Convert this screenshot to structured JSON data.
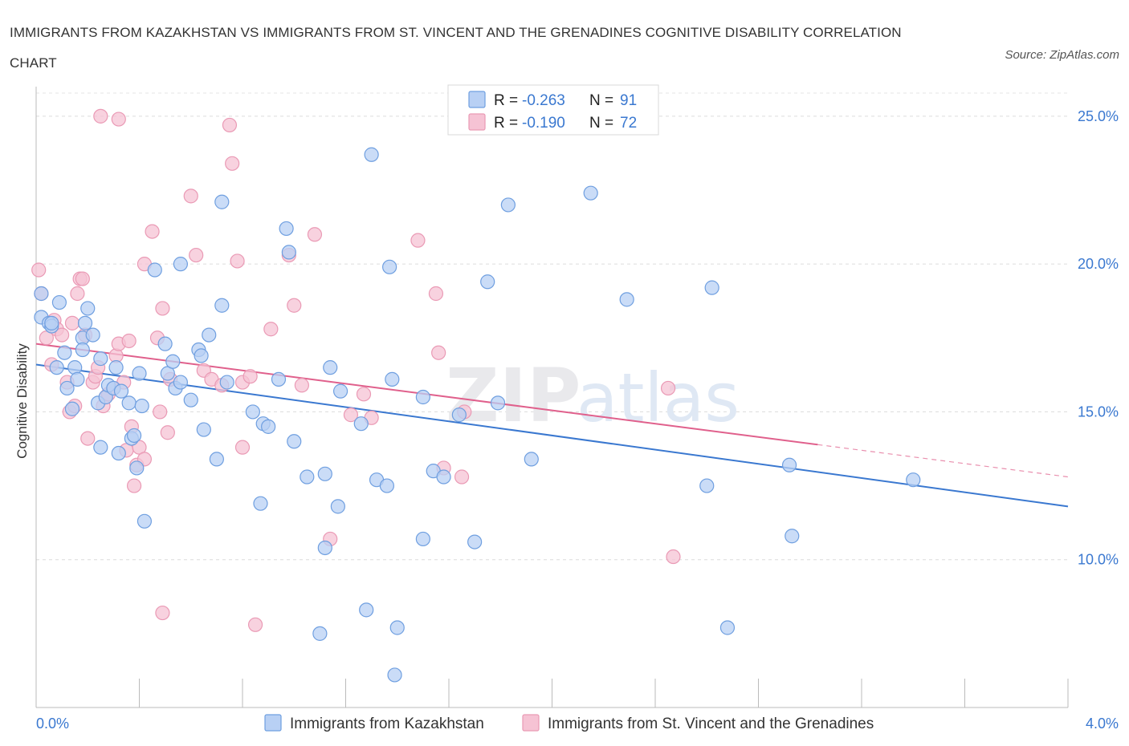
{
  "title": "IMMIGRANTS FROM KAZAKHSTAN VS IMMIGRANTS FROM ST. VINCENT AND THE GRENADINES COGNITIVE DISABILITY CORRELATION CHART",
  "source": "Source: ZipAtlas.com",
  "watermark": {
    "zip": "ZIP",
    "atlas": "atlas"
  },
  "chart_data": {
    "type": "scatter",
    "ylabel": "Cognitive Disability",
    "xlim": [
      0.0,
      4.0
    ],
    "ylim": [
      5.0,
      26.0
    ],
    "x_tick_labels": [
      {
        "value": 0.0,
        "label": "0.0%"
      },
      {
        "value": 4.0,
        "label": "4.0%"
      }
    ],
    "y_tick_labels": [
      {
        "value": 10.0,
        "label": "10.0%"
      },
      {
        "value": 15.0,
        "label": "15.0%"
      },
      {
        "value": 20.0,
        "label": "20.0%"
      },
      {
        "value": 25.0,
        "label": "25.0%"
      }
    ],
    "grid": true,
    "legend_placement": "top-center",
    "stats": [
      {
        "r_label": "R = ",
        "r_value": "-0.263",
        "n_label": "N = ",
        "n_value": "91"
      },
      {
        "r_label": "R = ",
        "r_value": "-0.190",
        "n_label": "N = ",
        "n_value": "72"
      }
    ],
    "series": [
      {
        "name": "Immigrants from Kazakhstan",
        "color": "#6f9fe0",
        "fill": "#b8d0f4",
        "line_color": "#3a78d0",
        "trend": {
          "x0": 0.0,
          "y0": 16.6,
          "x1": 4.0,
          "y1": 11.8,
          "solid_until": 4.0
        },
        "points": [
          [
            0.02,
            19.0
          ],
          [
            0.02,
            18.2
          ],
          [
            0.05,
            18.0
          ],
          [
            0.06,
            17.9
          ],
          [
            0.09,
            18.7
          ],
          [
            0.11,
            17.0
          ],
          [
            0.08,
            16.5
          ],
          [
            0.15,
            16.5
          ],
          [
            0.12,
            15.8
          ],
          [
            0.2,
            18.5
          ],
          [
            0.18,
            17.5
          ],
          [
            0.22,
            17.6
          ],
          [
            0.19,
            18.0
          ],
          [
            0.18,
            17.1
          ],
          [
            0.25,
            16.8
          ],
          [
            0.16,
            16.1
          ],
          [
            0.14,
            15.1
          ],
          [
            0.24,
            15.3
          ],
          [
            0.27,
            15.5
          ],
          [
            0.28,
            15.9
          ],
          [
            0.3,
            15.8
          ],
          [
            0.31,
            16.5
          ],
          [
            0.25,
            13.8
          ],
          [
            0.32,
            13.6
          ],
          [
            0.36,
            15.3
          ],
          [
            0.37,
            14.1
          ],
          [
            0.38,
            14.2
          ],
          [
            0.39,
            13.1
          ],
          [
            0.4,
            16.3
          ],
          [
            0.41,
            15.2
          ],
          [
            0.46,
            19.8
          ],
          [
            0.5,
            17.3
          ],
          [
            0.51,
            16.3
          ],
          [
            0.53,
            16.7
          ],
          [
            0.54,
            15.8
          ],
          [
            0.56,
            16.0
          ],
          [
            0.6,
            15.4
          ],
          [
            0.56,
            20.0
          ],
          [
            0.63,
            17.1
          ],
          [
            0.64,
            16.9
          ],
          [
            0.65,
            14.4
          ],
          [
            0.67,
            17.6
          ],
          [
            0.7,
            13.4
          ],
          [
            0.72,
            18.6
          ],
          [
            0.84,
            15.0
          ],
          [
            0.88,
            14.6
          ],
          [
            0.9,
            14.5
          ],
          [
            0.94,
            16.1
          ],
          [
            0.97,
            21.2
          ],
          [
            0.98,
            20.4
          ],
          [
            0.87,
            11.9
          ],
          [
            1.0,
            14.0
          ],
          [
            1.05,
            12.8
          ],
          [
            1.12,
            12.9
          ],
          [
            1.14,
            16.5
          ],
          [
            1.18,
            15.7
          ],
          [
            1.17,
            11.8
          ],
          [
            1.12,
            10.4
          ],
          [
            1.1,
            7.5
          ],
          [
            1.26,
            14.6
          ],
          [
            1.28,
            8.3
          ],
          [
            1.3,
            23.7
          ],
          [
            1.32,
            12.7
          ],
          [
            1.36,
            12.5
          ],
          [
            1.37,
            19.9
          ],
          [
            1.38,
            16.1
          ],
          [
            1.4,
            7.7
          ],
          [
            1.39,
            6.1
          ],
          [
            1.5,
            15.5
          ],
          [
            1.5,
            10.7
          ],
          [
            1.54,
            13.0
          ],
          [
            1.58,
            12.8
          ],
          [
            1.64,
            14.9
          ],
          [
            1.7,
            10.6
          ],
          [
            1.75,
            19.4
          ],
          [
            1.79,
            15.3
          ],
          [
            1.83,
            22.0
          ],
          [
            1.92,
            13.4
          ],
          [
            0.72,
            22.1
          ],
          [
            2.15,
            22.4
          ],
          [
            2.29,
            18.8
          ],
          [
            2.62,
            19.2
          ],
          [
            2.6,
            12.5
          ],
          [
            2.68,
            7.7
          ],
          [
            2.92,
            13.2
          ],
          [
            2.93,
            10.8
          ],
          [
            3.4,
            12.7
          ],
          [
            0.06,
            18.0
          ],
          [
            0.42,
            11.3
          ],
          [
            0.74,
            16.0
          ],
          [
            0.33,
            15.7
          ]
        ]
      },
      {
        "name": "Immigrants from St. Vincent and the Grenadines",
        "color": "#ea9ab5",
        "fill": "#f6c3d4",
        "line_color": "#e0608c",
        "trend": {
          "x0": 0.0,
          "y0": 17.3,
          "x1": 4.0,
          "y1": 12.8,
          "solid_until": 3.03
        },
        "points": [
          [
            0.01,
            19.8
          ],
          [
            0.02,
            19.0
          ],
          [
            0.04,
            17.5
          ],
          [
            0.06,
            16.6
          ],
          [
            0.07,
            18.1
          ],
          [
            0.08,
            17.8
          ],
          [
            0.1,
            17.6
          ],
          [
            0.12,
            16.0
          ],
          [
            0.13,
            15.0
          ],
          [
            0.14,
            18.0
          ],
          [
            0.16,
            19.0
          ],
          [
            0.17,
            19.5
          ],
          [
            0.19,
            17.6
          ],
          [
            0.18,
            19.5
          ],
          [
            0.15,
            15.2
          ],
          [
            0.2,
            14.1
          ],
          [
            0.22,
            16.0
          ],
          [
            0.23,
            16.2
          ],
          [
            0.24,
            16.5
          ],
          [
            0.26,
            15.2
          ],
          [
            0.27,
            15.5
          ],
          [
            0.28,
            15.6
          ],
          [
            0.3,
            15.8
          ],
          [
            0.31,
            16.9
          ],
          [
            0.32,
            17.3
          ],
          [
            0.34,
            16.0
          ],
          [
            0.35,
            13.7
          ],
          [
            0.36,
            17.4
          ],
          [
            0.37,
            14.5
          ],
          [
            0.38,
            12.5
          ],
          [
            0.39,
            13.2
          ],
          [
            0.4,
            13.8
          ],
          [
            0.42,
            13.4
          ],
          [
            0.42,
            20.0
          ],
          [
            0.45,
            21.1
          ],
          [
            0.47,
            17.5
          ],
          [
            0.48,
            15.0
          ],
          [
            0.49,
            18.5
          ],
          [
            0.51,
            14.3
          ],
          [
            0.52,
            16.1
          ],
          [
            0.49,
            8.2
          ],
          [
            0.6,
            22.3
          ],
          [
            0.62,
            20.3
          ],
          [
            0.65,
            16.4
          ],
          [
            0.68,
            16.1
          ],
          [
            0.72,
            15.9
          ],
          [
            0.75,
            24.7
          ],
          [
            0.76,
            23.4
          ],
          [
            0.78,
            20.1
          ],
          [
            0.8,
            16.0
          ],
          [
            0.8,
            13.8
          ],
          [
            0.83,
            16.2
          ],
          [
            0.85,
            7.8
          ],
          [
            0.91,
            17.8
          ],
          [
            0.98,
            20.3
          ],
          [
            1.0,
            18.6
          ],
          [
            1.03,
            15.9
          ],
          [
            1.08,
            21.0
          ],
          [
            1.14,
            10.7
          ],
          [
            1.22,
            14.9
          ],
          [
            1.27,
            15.6
          ],
          [
            1.3,
            14.8
          ],
          [
            1.48,
            20.8
          ],
          [
            1.55,
            19.0
          ],
          [
            1.56,
            17.0
          ],
          [
            1.58,
            13.1
          ],
          [
            1.65,
            12.8
          ],
          [
            1.66,
            15.0
          ],
          [
            0.32,
            24.9
          ],
          [
            0.25,
            25.0
          ],
          [
            2.45,
            15.8
          ],
          [
            2.47,
            10.1
          ]
        ]
      }
    ]
  }
}
